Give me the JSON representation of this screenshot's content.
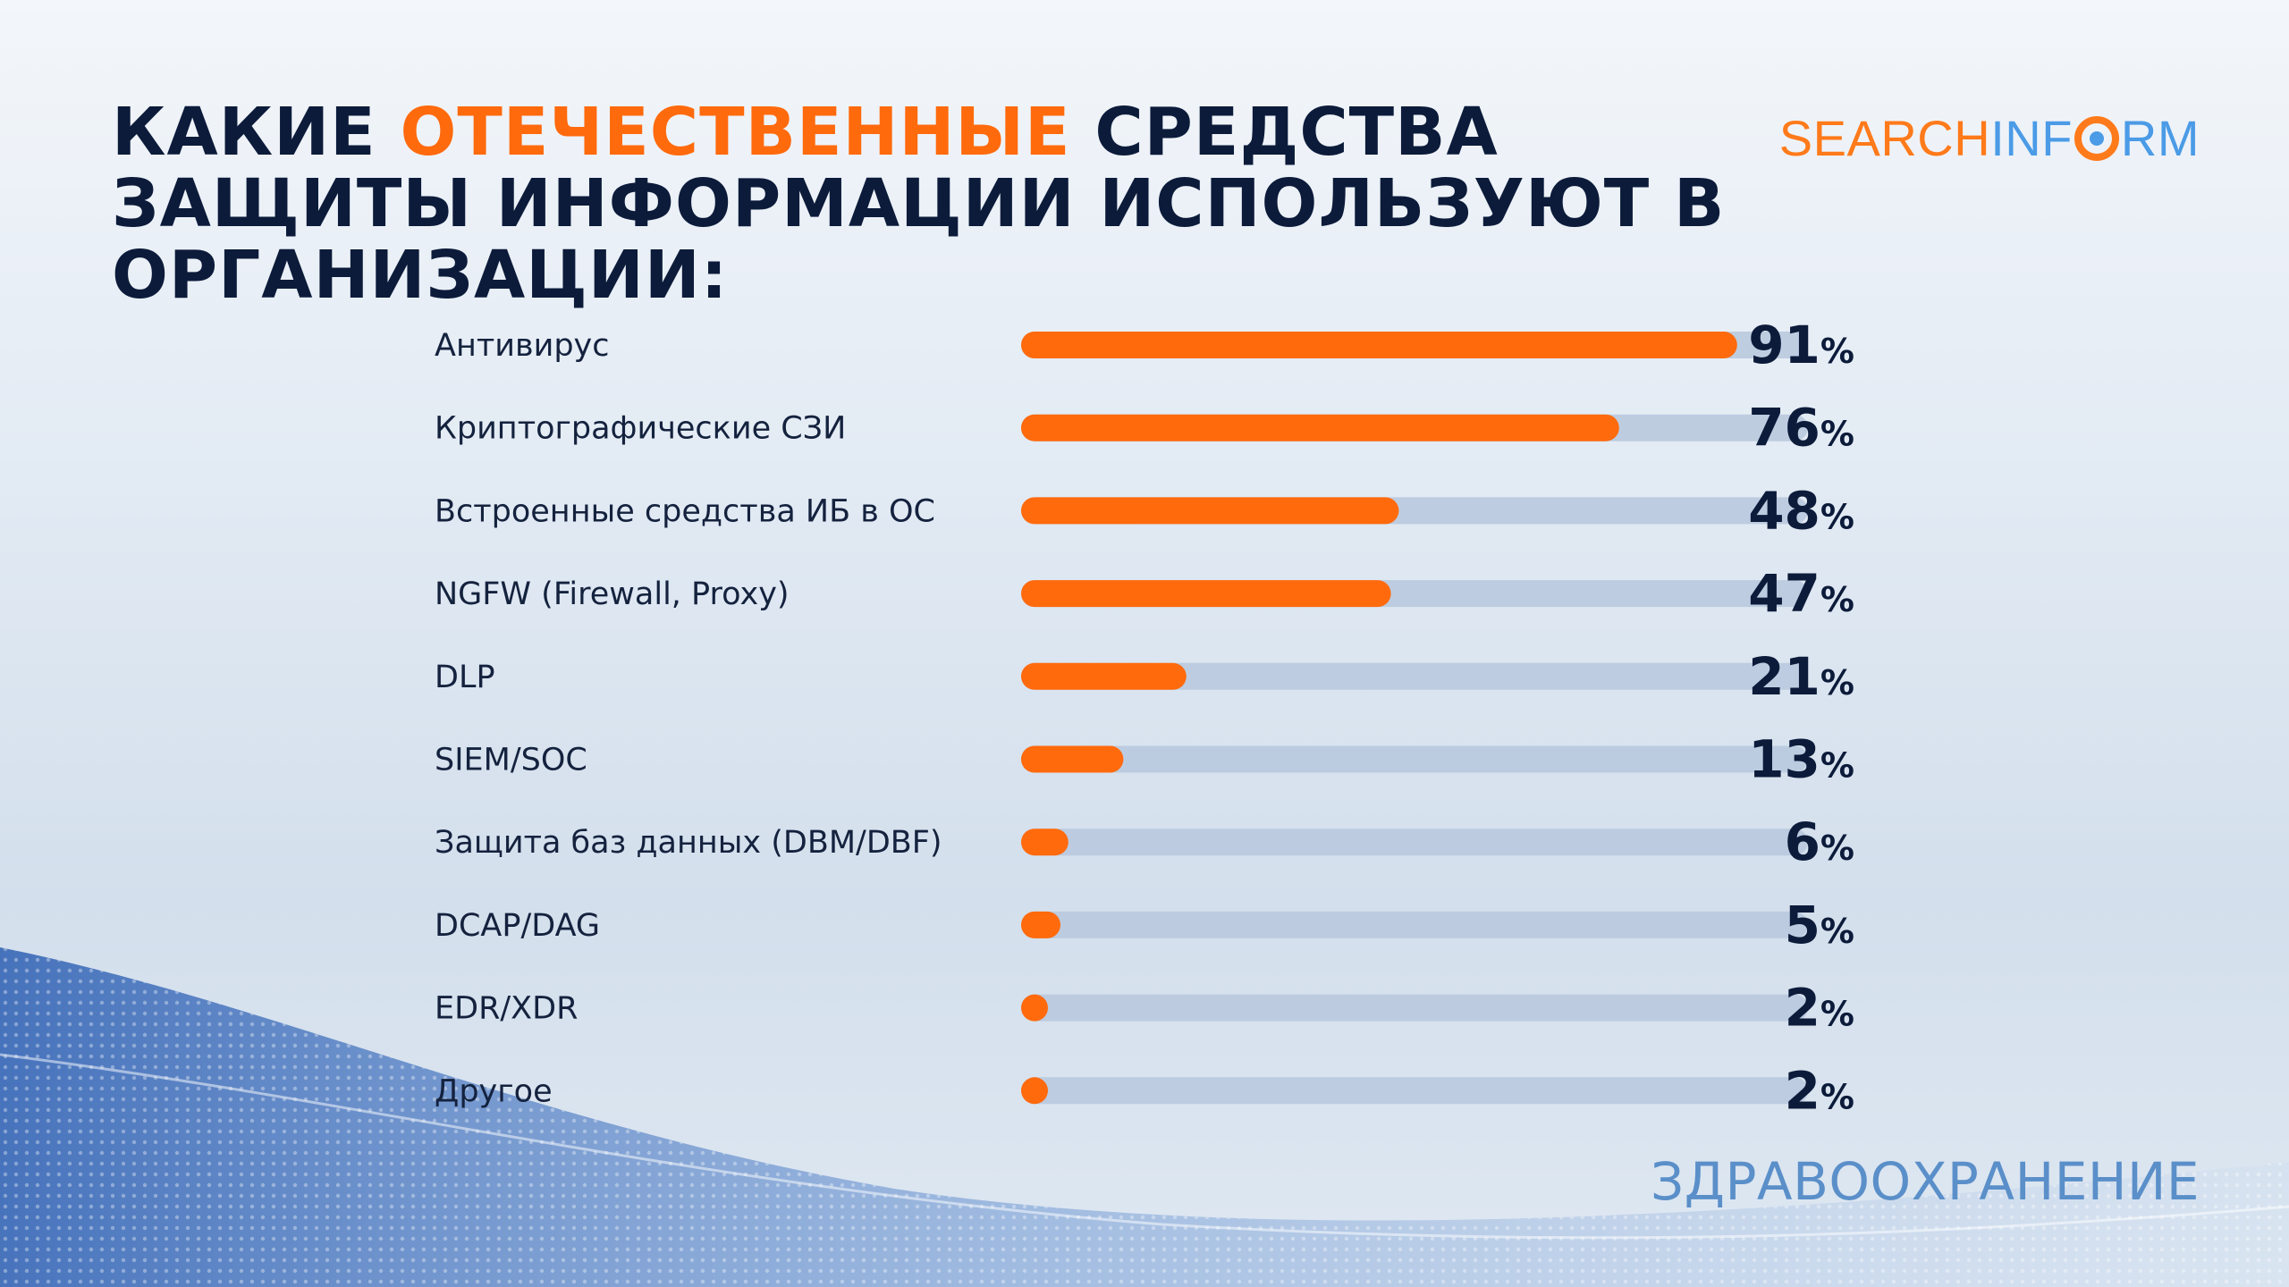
{
  "title": {
    "part1": "Какие ",
    "accent": "отечественные",
    "part2": " средства защиты информации используют в организации:"
  },
  "logo": {
    "part1": "SEARCH",
    "part2": "INF",
    "part3": "RM"
  },
  "footer": "ЗДРАВООХРАНЕНИЕ",
  "colors": {
    "accent": "#ff6a0d",
    "track": "#b9c9de",
    "text": "#0c1b3a"
  },
  "chart_data": {
    "type": "bar",
    "orientation": "horizontal",
    "title": "Какие отечественные средства защиты информации используют в организации:",
    "categories": [
      "Антивирус",
      "Криптографические СЗИ",
      "Встроенные средства ИБ в ОС",
      "NGFW (Firewall, Proxy)",
      "DLP",
      "SIEM/SOC",
      "Защита баз данных (DBM/DBF)",
      "DCAP/DAG",
      "EDR/XDR",
      "Другое"
    ],
    "values": [
      91,
      76,
      48,
      47,
      21,
      13,
      6,
      5,
      2,
      2
    ],
    "value_suffix": "%",
    "xlim": [
      0,
      100
    ],
    "grid": false,
    "legend": "none"
  }
}
